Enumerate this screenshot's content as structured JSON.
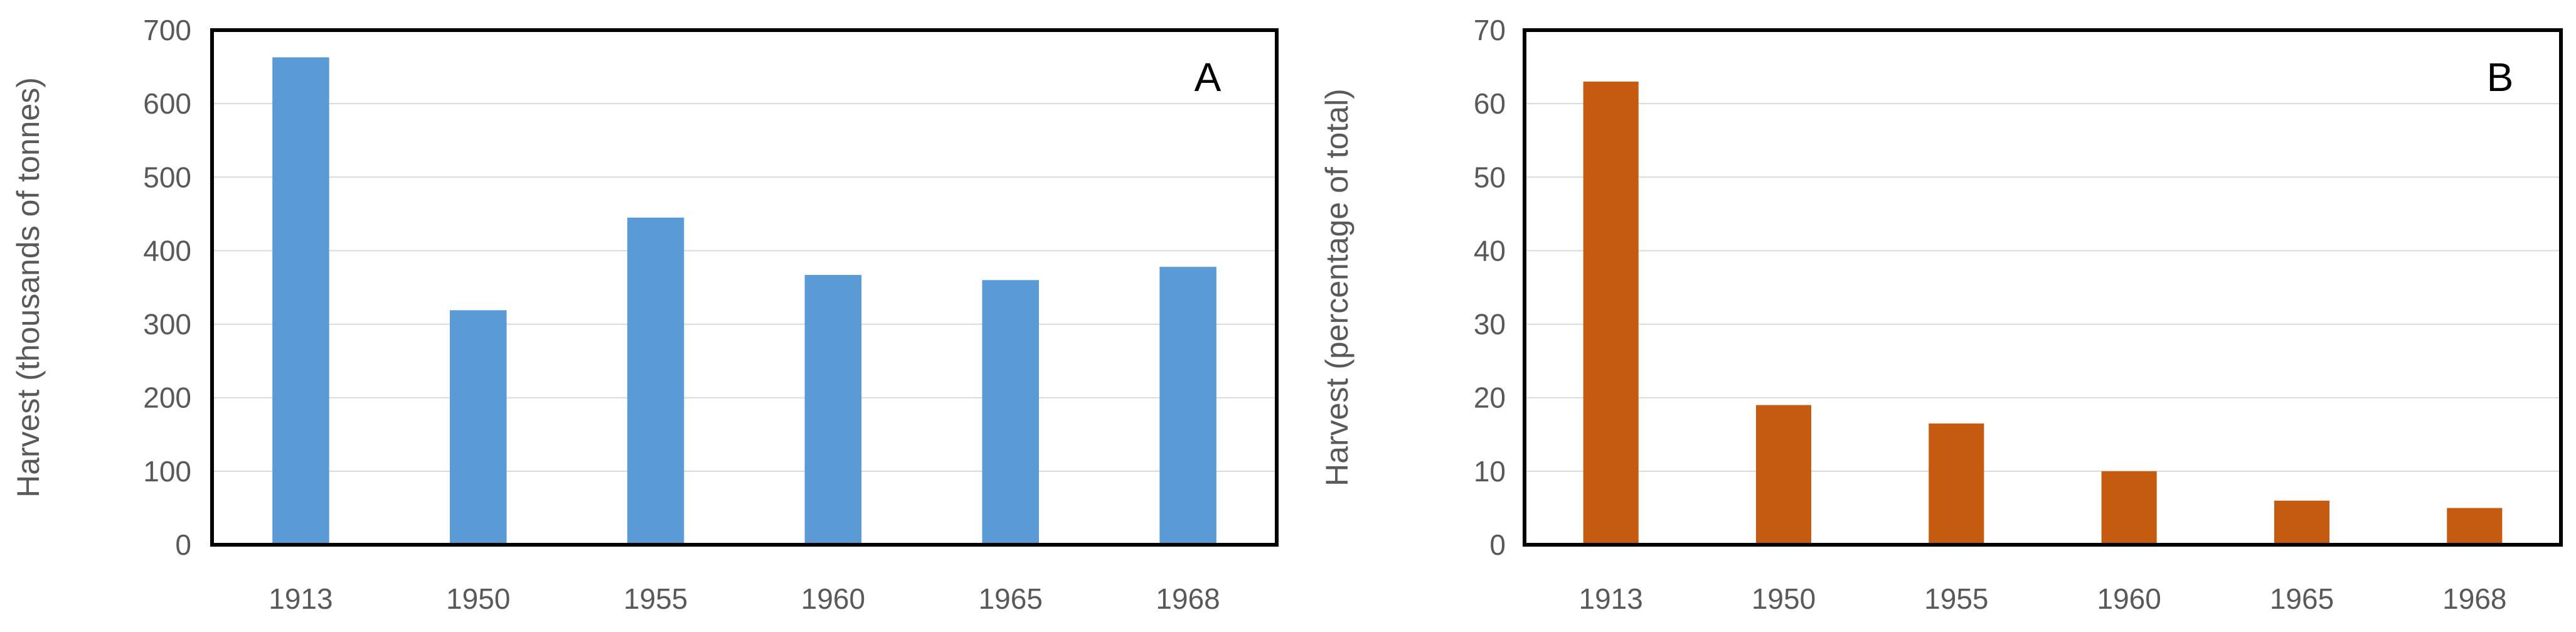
{
  "chart_data": [
    {
      "type": "bar",
      "panel_label": "A",
      "categories": [
        "1913",
        "1950",
        "1955",
        "1960",
        "1965",
        "1968"
      ],
      "values": [
        663,
        319,
        445,
        367,
        360,
        378
      ],
      "ylabel": "Harvest (thousands of tonnes)",
      "xlabel": "",
      "ylim": [
        0,
        700
      ],
      "yticks": [
        "0",
        "100",
        "200",
        "300",
        "400",
        "500",
        "600",
        "700"
      ],
      "grid": true,
      "color": "#5b9bd5"
    },
    {
      "type": "bar",
      "panel_label": "B",
      "categories": [
        "1913",
        "1950",
        "1955",
        "1960",
        "1965",
        "1968"
      ],
      "values": [
        63,
        19,
        16.5,
        10,
        6,
        5
      ],
      "ylabel": "Harvest (percentage of total)",
      "xlabel": "",
      "ylim": [
        0,
        70
      ],
      "yticks": [
        "0",
        "10",
        "20",
        "30",
        "40",
        "50",
        "60",
        "70"
      ],
      "grid": true,
      "color": "#c55a11"
    }
  ]
}
